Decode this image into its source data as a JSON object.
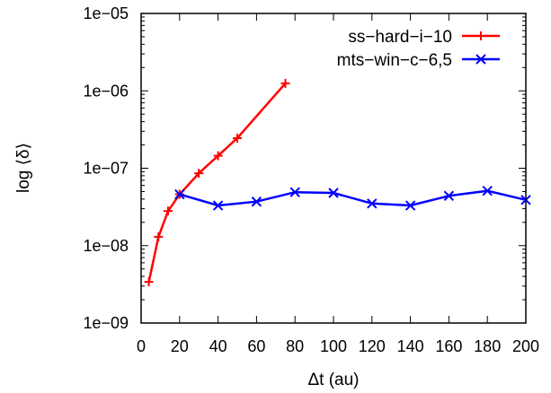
{
  "chart_data": {
    "type": "line",
    "xlabel": "Δt (au)",
    "ylabel": "log ⟨δ⟩",
    "xlim": [
      0,
      200
    ],
    "ylim": [
      1e-09,
      1e-05
    ],
    "yscale": "log",
    "x_ticks": [
      "0",
      "20",
      "40",
      "60",
      "80",
      "100",
      "120",
      "140",
      "160",
      "180",
      "200"
    ],
    "y_ticks": [
      "1e−09",
      "1e−08",
      "1e−07",
      "1e−06",
      "1e−05"
    ],
    "grid": false,
    "legend_position": "top-right",
    "series": [
      {
        "name": "ss−hard−i−10",
        "color": "#ff0000",
        "marker": "plus",
        "x": [
          4,
          9,
          14,
          20,
          30,
          40,
          50,
          75
        ],
        "y": [
          3.4e-09,
          1.3e-08,
          2.8e-08,
          4.6e-08,
          8.6e-08,
          1.45e-07,
          2.45e-07,
          1.25e-06
        ]
      },
      {
        "name": "mts−win−c−6,5",
        "color": "#0000ff",
        "marker": "cross",
        "x": [
          20,
          40,
          60,
          80,
          100,
          120,
          140,
          160,
          180,
          200
        ],
        "y": [
          4.6e-08,
          3.3e-08,
          3.7e-08,
          4.9e-08,
          4.8e-08,
          3.5e-08,
          3.3e-08,
          4.4e-08,
          5.1e-08,
          3.9e-08
        ]
      }
    ]
  }
}
